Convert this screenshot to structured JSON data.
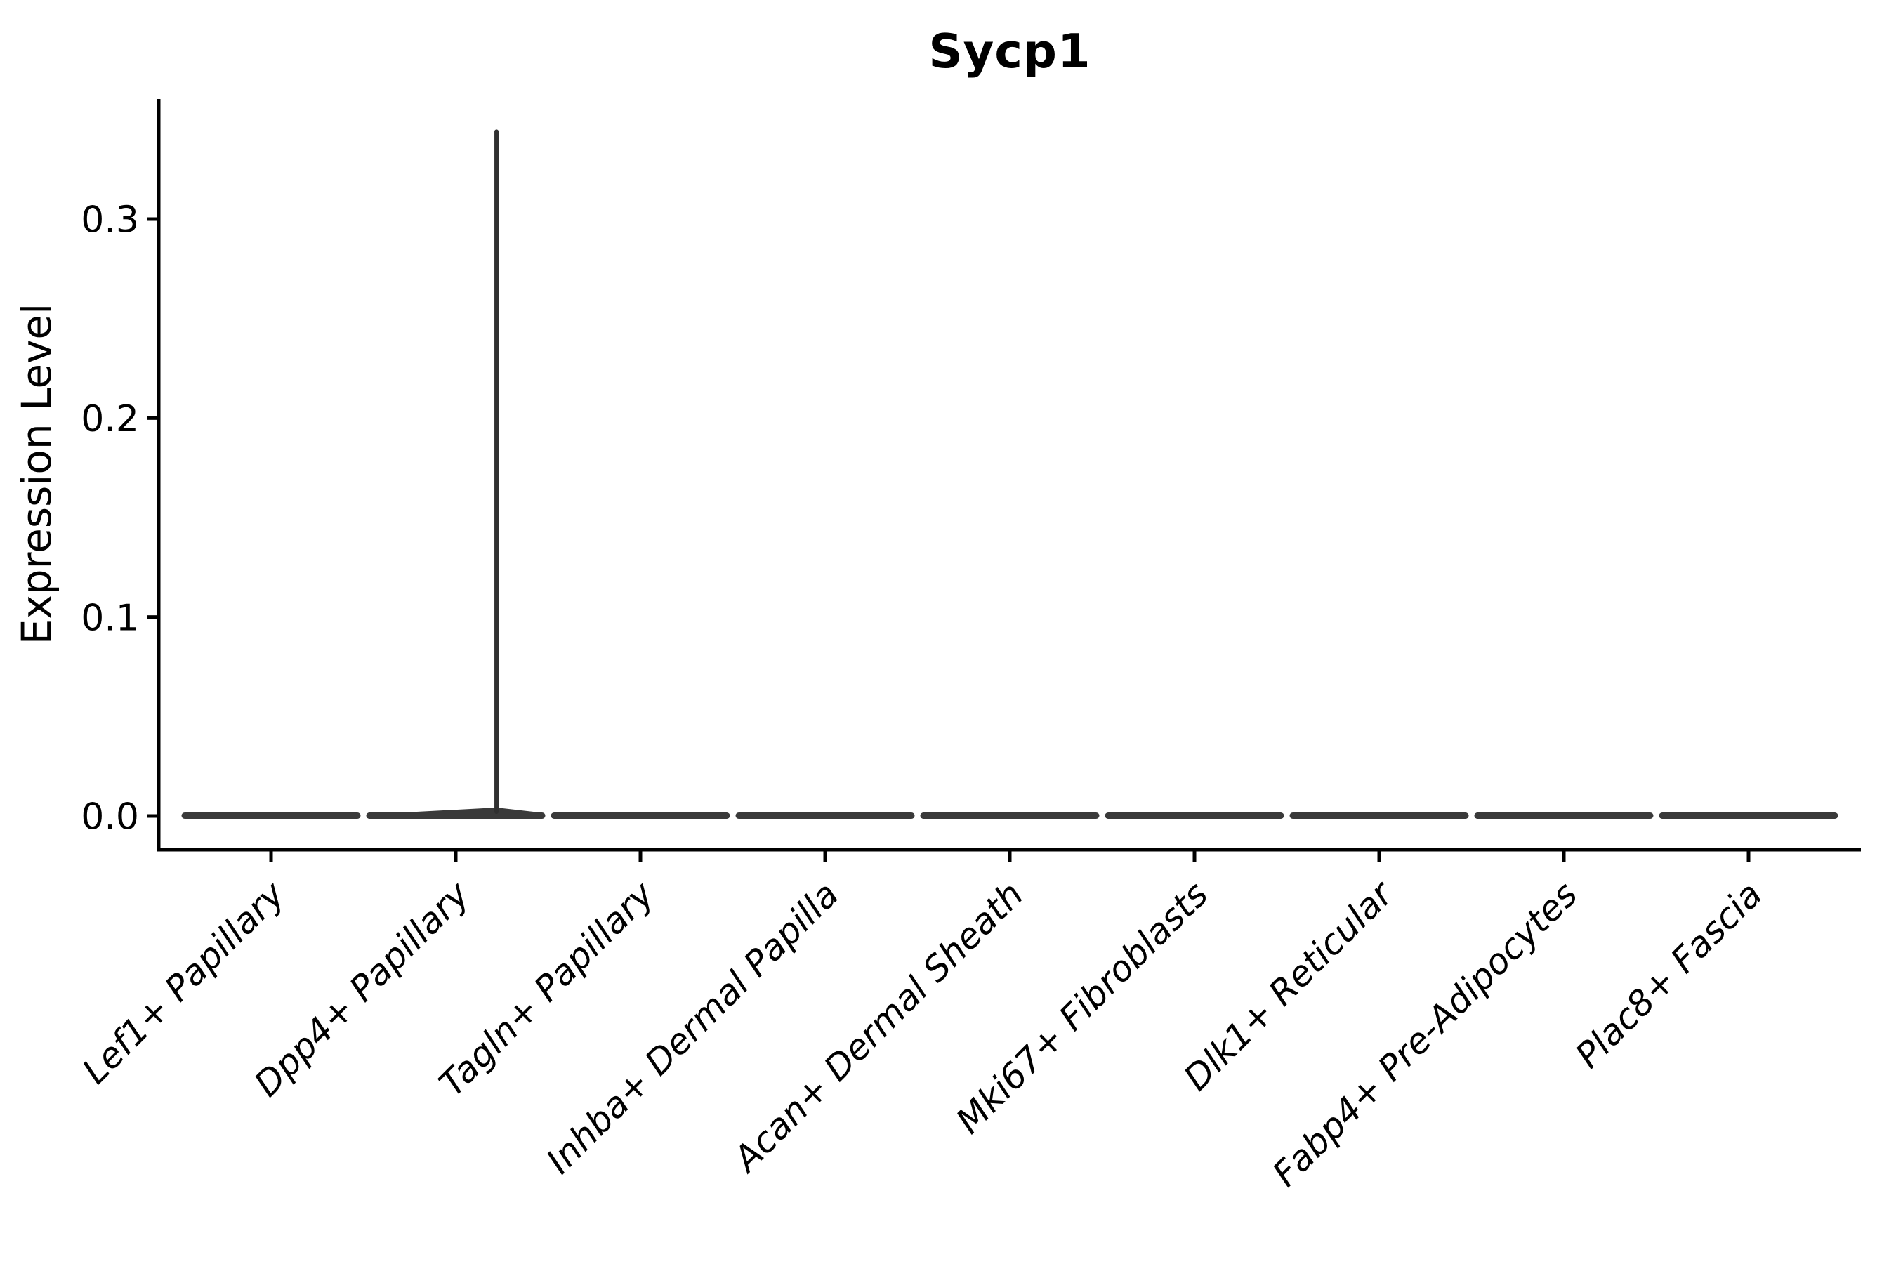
{
  "figure": {
    "title": "Sycp1"
  },
  "chart_data": {
    "type": "violin",
    "title": "Sycp1",
    "xlabel": "",
    "ylabel": "Expression Level",
    "y_axis": {
      "tick_labels": [
        "0.0",
        "0.1",
        "0.2",
        "0.3"
      ],
      "tick_values": [
        0.0,
        0.1,
        0.2,
        0.3
      ],
      "range": [
        -0.017,
        0.361
      ],
      "grid": false
    },
    "categories": [
      "Lef1+ Papillary",
      "Dpp4+ Papillary",
      "Tagln+ Papillary",
      "Inhba+ Dermal Papilla",
      "Acan+ Dermal Sheath",
      "Mki67+ Fibroblasts",
      "Dlk1+ Reticular",
      "Fabp4+ Pre-Adipocytes",
      "Plac8+ Fascia"
    ],
    "series": [
      {
        "category": "Lef1+ Papillary",
        "shape": "flat",
        "max_expression": 0.0
      },
      {
        "category": "Dpp4+ Papillary",
        "shape": "spike",
        "max_expression": 0.344,
        "spike_x_frac": 0.236
      },
      {
        "category": "Tagln+ Papillary",
        "shape": "flat",
        "max_expression": 0.0
      },
      {
        "category": "Inhba+ Dermal Papilla",
        "shape": "flat",
        "max_expression": 0.0
      },
      {
        "category": "Acan+ Dermal Sheath",
        "shape": "flat",
        "max_expression": 0.0
      },
      {
        "category": "Mki67+ Fibroblasts",
        "shape": "flat",
        "max_expression": 0.0
      },
      {
        "category": "Dlk1+ Reticular",
        "shape": "flat",
        "max_expression": 0.0
      },
      {
        "category": "Fabp4+ Pre-Adipocytes",
        "shape": "flat",
        "max_expression": 0.0
      },
      {
        "category": "Plac8+ Fascia",
        "shape": "flat",
        "max_expression": 0.0
      }
    ],
    "legend": {
      "visible": false
    },
    "colors": {
      "violin": "#3a3a3a",
      "spike": "#303030",
      "axis": "#000000",
      "text": "#000000",
      "background": "#ffffff"
    }
  }
}
